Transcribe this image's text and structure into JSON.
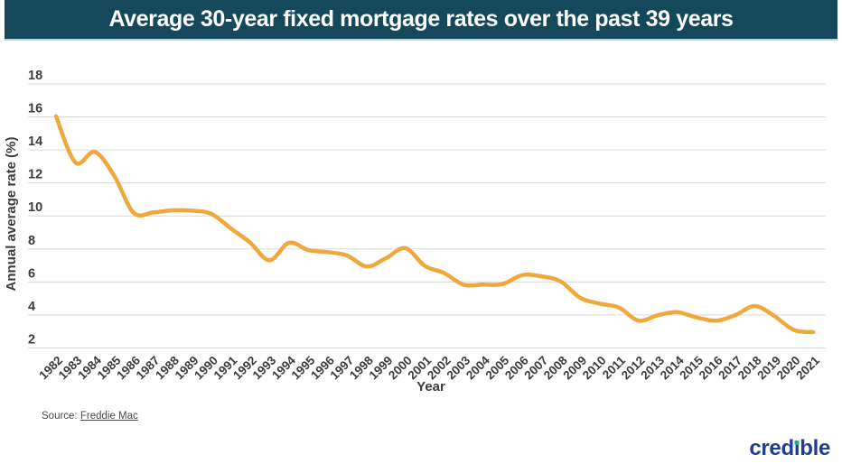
{
  "header": {
    "title": "Average 30-year fixed mortgage rates over the past 39 years"
  },
  "chart_data": {
    "type": "line",
    "title": "Average 30-year fixed mortgage rates over the past 39 years",
    "xlabel": "Year",
    "ylabel": "Annual average rate (%)",
    "x": [
      1982,
      1983,
      1984,
      1985,
      1986,
      1987,
      1988,
      1989,
      1990,
      1991,
      1992,
      1993,
      1994,
      1995,
      1996,
      1997,
      1998,
      1999,
      2000,
      2001,
      2002,
      2003,
      2004,
      2005,
      2006,
      2007,
      2008,
      2009,
      2010,
      2011,
      2012,
      2013,
      2014,
      2015,
      2016,
      2017,
      2018,
      2019,
      2020,
      2021
    ],
    "values": [
      16.04,
      13.24,
      13.88,
      12.43,
      10.19,
      10.21,
      10.34,
      10.32,
      10.13,
      9.25,
      8.39,
      7.31,
      8.38,
      7.93,
      7.81,
      7.6,
      6.94,
      7.44,
      8.05,
      6.97,
      6.54,
      5.83,
      5.84,
      5.87,
      6.41,
      6.34,
      6.03,
      5.04,
      4.69,
      4.45,
      3.66,
      3.98,
      4.17,
      3.85,
      3.65,
      3.99,
      4.54,
      3.94,
      3.1,
      2.96
    ],
    "yticks": [
      2,
      4,
      6,
      8,
      10,
      12,
      14,
      16,
      18
    ],
    "ylim": [
      2,
      18
    ],
    "grid": "horizontal",
    "legend": "none",
    "line_color": "#F0A83C"
  },
  "source": {
    "label": "Source:",
    "link_text": "Freddie Mac"
  },
  "logo": {
    "pre": "cred",
    "i": "i",
    "post": "ble"
  },
  "colors": {
    "banner_bg": "#14485A",
    "banner_text": "#FFFFFF",
    "grid": "#D9D9D9",
    "axis_text": "#3C3C3C",
    "line": "#F0A83C",
    "source_text": "#4A4A4A",
    "logo_navy": "#1C3E94",
    "logo_teal": "#2BA38D"
  }
}
